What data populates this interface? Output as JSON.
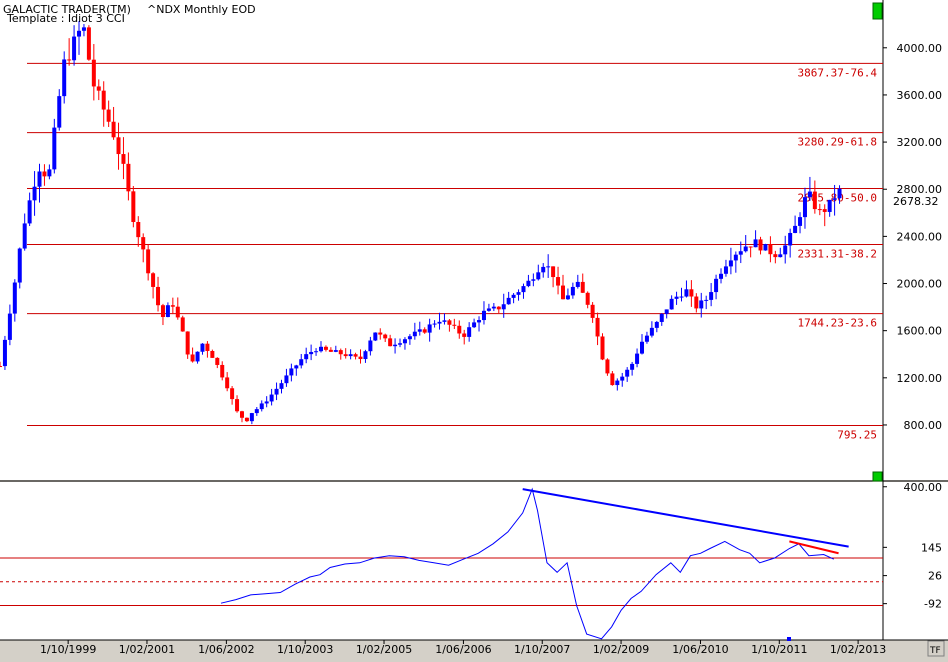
{
  "header": {
    "app_title": "GALACTIC TRADER(TM)",
    "symbol": "^NDX Monthly EOD",
    "template": "Template : Idiot 3 CCI"
  },
  "tf_button": "TF",
  "colors": {
    "up_candle": "#0000ff",
    "down_candle": "#ff0000",
    "fib_line": "#cc0000",
    "cci_line": "#0000ff",
    "trend_line": "#0000ff",
    "short_trend": "#ff0000",
    "background": "#ffffff",
    "panel_marker": "#00cc00"
  },
  "chart_data": [
    {
      "type": "candlestick",
      "title": "^NDX Monthly EOD",
      "ylim": [
        350,
        4380
      ],
      "xlim": [
        1998.6,
        2013.5
      ],
      "y_ticks": [
        "4000.00",
        "3600.00",
        "3200.00",
        "2800.00",
        "2400.00",
        "2000.00",
        "1600.00",
        "1200.00",
        "800.00"
      ],
      "y_tick_values": [
        4000,
        3600,
        3200,
        2800,
        2400,
        2000,
        1600,
        1200,
        800
      ],
      "last_price": "2678.32",
      "last_price_value": 2678.32,
      "fib_levels": [
        {
          "label": "3867.37-76.4",
          "value": 3867.37
        },
        {
          "label": "3280.29-61.8",
          "value": 3280.29
        },
        {
          "label": "2805.80-50.0",
          "value": 2805.8
        },
        {
          "label": "2331.31-38.2",
          "value": 2331.31
        },
        {
          "label": "1744.23-23.6",
          "value": 1744.23
        },
        {
          "label": "795.25",
          "value": 795.25
        }
      ],
      "x_labels": [
        "1/10/1999",
        "1/02/2001",
        "1/06/2002",
        "1/10/2003",
        "1/02/2005",
        "1/06/2006",
        "1/10/2007",
        "1/02/2009",
        "1/06/2010",
        "1/10/2011",
        "1/02/2013"
      ],
      "x_label_values": [
        1999.75,
        2001.08,
        2002.42,
        2003.75,
        2005.08,
        2006.42,
        2007.75,
        2009.08,
        2010.42,
        2011.75,
        2013.08
      ],
      "close_path": [
        [
          1998.6,
          1300
        ],
        [
          1998.83,
          1950
        ],
        [
          1999.0,
          2500
        ],
        [
          1999.25,
          3000
        ],
        [
          1999.42,
          2900
        ],
        [
          1999.67,
          3850
        ],
        [
          2000.0,
          4200
        ],
        [
          2000.17,
          3700
        ],
        [
          2000.33,
          3500
        ],
        [
          2000.5,
          3300
        ],
        [
          2000.67,
          3000
        ],
        [
          2000.83,
          2600
        ],
        [
          2001.0,
          2300
        ],
        [
          2001.17,
          2000
        ],
        [
          2001.33,
          1700
        ],
        [
          2001.5,
          1850
        ],
        [
          2001.67,
          1600
        ],
        [
          2001.83,
          1300
        ],
        [
          2002.0,
          1500
        ],
        [
          2002.17,
          1400
        ],
        [
          2002.42,
          1150
        ],
        [
          2002.58,
          920
        ],
        [
          2002.75,
          830
        ],
        [
          2002.83,
          900
        ],
        [
          2003.0,
          960
        ],
        [
          2003.17,
          1050
        ],
        [
          2003.42,
          1200
        ],
        [
          2003.67,
          1350
        ],
        [
          2003.92,
          1450
        ],
        [
          2004.17,
          1420
        ],
        [
          2004.42,
          1400
        ],
        [
          2004.67,
          1350
        ],
        [
          2004.92,
          1600
        ],
        [
          2005.17,
          1480
        ],
        [
          2005.5,
          1550
        ],
        [
          2005.75,
          1600
        ],
        [
          2006.0,
          1700
        ],
        [
          2006.17,
          1650
        ],
        [
          2006.42,
          1560
        ],
        [
          2006.75,
          1750
        ],
        [
          2007.0,
          1790
        ],
        [
          2007.25,
          1900
        ],
        [
          2007.5,
          2000
        ],
        [
          2007.75,
          2180
        ],
        [
          2007.92,
          2100
        ],
        [
          2008.08,
          1850
        ],
        [
          2008.33,
          2000
        ],
        [
          2008.58,
          1780
        ],
        [
          2008.75,
          1400
        ],
        [
          2008.92,
          1150
        ],
        [
          2009.08,
          1200
        ],
        [
          2009.25,
          1300
        ],
        [
          2009.42,
          1500
        ],
        [
          2009.67,
          1650
        ],
        [
          2009.92,
          1850
        ],
        [
          2010.17,
          1950
        ],
        [
          2010.33,
          1800
        ],
        [
          2010.5,
          1850
        ],
        [
          2010.75,
          2100
        ],
        [
          2010.92,
          2230
        ],
        [
          2011.17,
          2320
        ],
        [
          2011.33,
          2350
        ],
        [
          2011.5,
          2300
        ],
        [
          2011.67,
          2250
        ],
        [
          2011.83,
          2300
        ],
        [
          2012.0,
          2450
        ],
        [
          2012.17,
          2700
        ],
        [
          2012.25,
          2750
        ],
        [
          2012.42,
          2600
        ],
        [
          2012.58,
          2650
        ],
        [
          2012.75,
          2800
        ],
        [
          2012.83,
          2700
        ]
      ]
    },
    {
      "type": "line",
      "title": "CCI",
      "ylim": [
        -245,
        420
      ],
      "y_ticks": [
        "400.00",
        "145",
        "26",
        "-92"
      ],
      "y_tick_values": [
        400,
        145,
        26,
        -92
      ],
      "reference_lines": [
        {
          "value": 100,
          "style": "solid"
        },
        {
          "value": 0,
          "style": "dashed"
        },
        {
          "value": -100,
          "style": "solid"
        }
      ],
      "series": [
        {
          "x": [
            2002.33,
            2002.58,
            2002.83,
            2003.08,
            2003.33,
            2003.58,
            2003.83,
            2004.0,
            2004.17,
            2004.42,
            2004.67,
            2004.92,
            2005.17,
            2005.42,
            2005.67,
            2005.92,
            2006.17,
            2006.42,
            2006.67,
            2006.92,
            2007.17,
            2007.42,
            2007.58,
            2007.67,
            2007.83,
            2008.0,
            2008.17,
            2008.33,
            2008.5,
            2008.75,
            2008.92,
            2009.08,
            2009.25,
            2009.42,
            2009.67,
            2009.92,
            2010.08,
            2010.25,
            2010.42,
            2010.58,
            2010.83,
            2011.08,
            2011.25,
            2011.42,
            2011.67,
            2011.92,
            2012.08,
            2012.25,
            2012.5,
            2012.67
          ],
          "values": [
            -90,
            -75,
            -55,
            -50,
            -45,
            -10,
            20,
            30,
            60,
            75,
            80,
            100,
            110,
            105,
            90,
            80,
            70,
            95,
            120,
            160,
            210,
            290,
            390,
            300,
            80,
            40,
            80,
            -100,
            -220,
            -240,
            -190,
            -120,
            -70,
            -40,
            30,
            80,
            40,
            110,
            120,
            140,
            170,
            135,
            120,
            80,
            100,
            140,
            160,
            110,
            115,
            95
          ]
        }
      ],
      "trend_line": {
        "x": [
          2007.42,
          2012.92
        ],
        "values": [
          390,
          148
        ]
      },
      "short_trend": {
        "x": [
          2011.92,
          2012.75
        ],
        "values": [
          170,
          120
        ]
      }
    }
  ]
}
